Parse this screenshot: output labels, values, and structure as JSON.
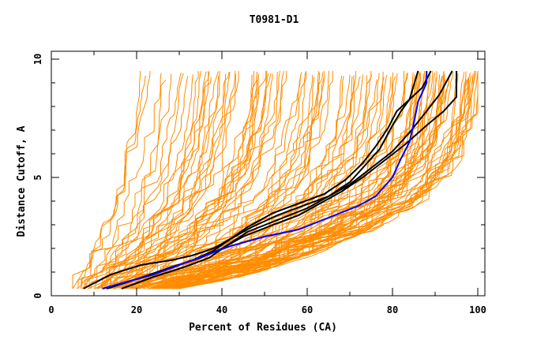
{
  "chart_data": {
    "type": "line",
    "title": "T0981-D1",
    "xlabel": "Percent of Residues (CA)",
    "ylabel": "Distance Cutoff, A",
    "xlim": [
      0,
      100
    ],
    "ylim": [
      0,
      10
    ],
    "x_ticks": [
      0,
      20,
      40,
      60,
      80,
      100
    ],
    "y_ticks": [
      0,
      5,
      10
    ],
    "x_minor_step": 10,
    "y_minor_step": 1,
    "grid": false,
    "legend": null,
    "colors": {
      "background_models": "#ff8c00",
      "highlight_black": "#000000",
      "highlight_blue": "#0000ff",
      "frame": "#000000"
    },
    "background_model_count": 120,
    "background_envelope": {
      "left_bound": [
        [
          5,
          0.3
        ],
        [
          8,
          1.5
        ],
        [
          11,
          2.5
        ],
        [
          14,
          4
        ],
        [
          17,
          6
        ],
        [
          19,
          8
        ],
        [
          20,
          9.5
        ]
      ],
      "right_bound": [
        [
          30,
          0.3
        ],
        [
          45,
          0.8
        ],
        [
          60,
          1.6
        ],
        [
          75,
          2.7
        ],
        [
          88,
          4
        ],
        [
          96,
          5.5
        ],
        [
          100,
          7.5
        ],
        [
          100,
          9.5
        ]
      ]
    },
    "series": [
      {
        "name": "model-black-1",
        "color": "#000000",
        "points": [
          [
            7.5,
            0.3
          ],
          [
            14,
            0.9
          ],
          [
            21,
            1.3
          ],
          [
            28,
            1.5
          ],
          [
            33,
            1.7
          ],
          [
            38,
            2.0
          ],
          [
            42,
            2.4
          ],
          [
            47,
            2.9
          ],
          [
            53,
            3.4
          ],
          [
            59,
            3.8
          ],
          [
            65,
            4.2
          ],
          [
            70,
            4.8
          ],
          [
            74,
            5.6
          ],
          [
            77,
            6.2
          ],
          [
            80,
            7.2
          ],
          [
            82,
            7.8
          ],
          [
            84,
            8.3
          ],
          [
            86,
            9.5
          ]
        ]
      },
      {
        "name": "model-black-2",
        "color": "#000000",
        "points": [
          [
            13,
            0.3
          ],
          [
            20,
            0.7
          ],
          [
            27,
            1.1
          ],
          [
            33,
            1.5
          ],
          [
            38,
            1.9
          ],
          [
            42,
            2.4
          ],
          [
            46,
            2.9
          ],
          [
            52,
            3.5
          ],
          [
            58,
            3.9
          ],
          [
            64,
            4.3
          ],
          [
            69,
            4.9
          ],
          [
            73,
            5.6
          ],
          [
            76,
            6.3
          ],
          [
            79,
            7.1
          ],
          [
            81,
            7.8
          ],
          [
            84,
            8.3
          ],
          [
            87,
            8.8
          ],
          [
            89,
            9.5
          ]
        ]
      },
      {
        "name": "model-black-3",
        "color": "#000000",
        "points": [
          [
            16.5,
            0.3
          ],
          [
            24,
            0.8
          ],
          [
            31,
            1.2
          ],
          [
            37,
            1.6
          ],
          [
            41,
            2.1
          ],
          [
            46,
            2.7
          ],
          [
            53,
            3.2
          ],
          [
            60,
            3.7
          ],
          [
            66,
            4.3
          ],
          [
            70,
            4.7
          ],
          [
            75,
            5.4
          ],
          [
            80,
            6.1
          ],
          [
            84,
            6.9
          ],
          [
            88,
            7.8
          ],
          [
            91,
            8.5
          ],
          [
            94,
            9.5
          ]
        ]
      },
      {
        "name": "model-black-4",
        "color": "#000000",
        "points": [
          [
            12,
            0.3
          ],
          [
            20,
            0.7
          ],
          [
            28,
            1.2
          ],
          [
            35,
            1.6
          ],
          [
            40,
            2.0
          ],
          [
            45,
            2.5
          ],
          [
            52,
            3.0
          ],
          [
            58,
            3.4
          ],
          [
            63,
            3.9
          ],
          [
            68,
            4.4
          ],
          [
            73,
            5.0
          ],
          [
            78,
            5.7
          ],
          [
            83,
            6.4
          ],
          [
            88,
            7.2
          ],
          [
            92,
            7.8
          ],
          [
            95,
            8.4
          ],
          [
            95,
            9.5
          ]
        ]
      },
      {
        "name": "model-blue",
        "color": "#0000ff",
        "points": [
          [
            12,
            0.3
          ],
          [
            18,
            0.6
          ],
          [
            24,
            0.9
          ],
          [
            30,
            1.3
          ],
          [
            36,
            1.7
          ],
          [
            42,
            2.1
          ],
          [
            50,
            2.5
          ],
          [
            58,
            2.8
          ],
          [
            65,
            3.3
          ],
          [
            72,
            3.8
          ],
          [
            76,
            4.2
          ],
          [
            80,
            5.0
          ],
          [
            82,
            5.8
          ],
          [
            84,
            6.5
          ],
          [
            85,
            7.3
          ],
          [
            86,
            8.2
          ],
          [
            88,
            9.0
          ],
          [
            88,
            9.5
          ]
        ]
      }
    ]
  }
}
